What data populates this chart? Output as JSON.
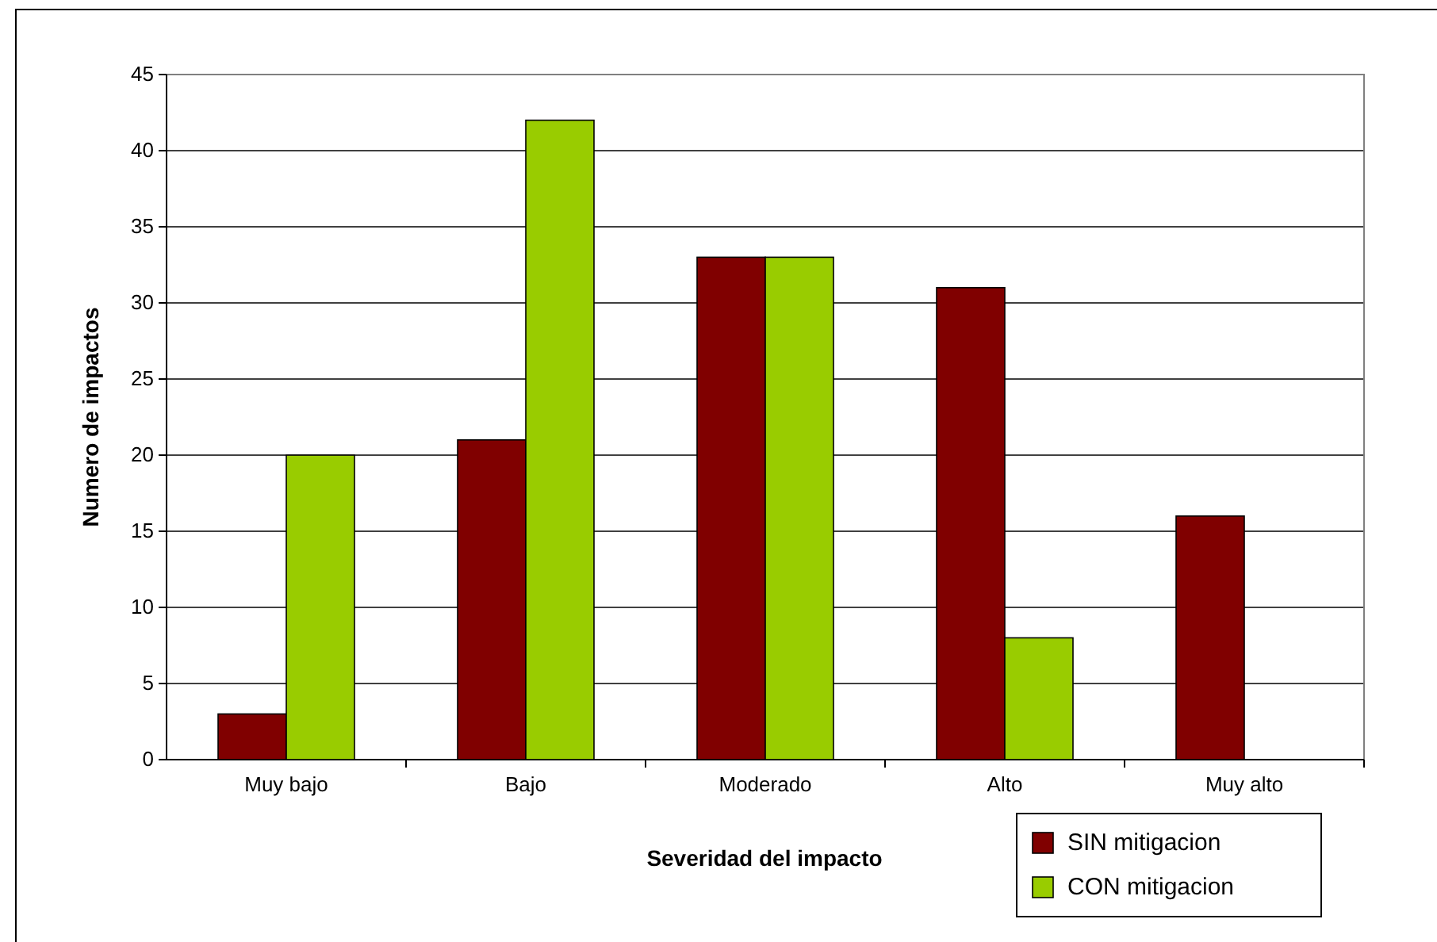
{
  "chart_data": {
    "type": "bar",
    "xlabel": "Severidad del impacto",
    "ylabel": "Numero de impactos",
    "categories": [
      "Muy bajo",
      "Bajo",
      "Moderado",
      "Alto",
      "Muy alto"
    ],
    "series": [
      {
        "name": "SIN mitigacion",
        "color": "#800000",
        "values": [
          3,
          21,
          33,
          31,
          16
        ]
      },
      {
        "name": "CON  mitigacion",
        "color": "#99cc00",
        "values": [
          20,
          42,
          33,
          8,
          0
        ]
      }
    ],
    "ylim": [
      0,
      45
    ],
    "yticks": [
      0,
      5,
      10,
      15,
      20,
      25,
      30,
      35,
      40,
      45
    ],
    "grid": "y",
    "legend": "bottom right"
  }
}
